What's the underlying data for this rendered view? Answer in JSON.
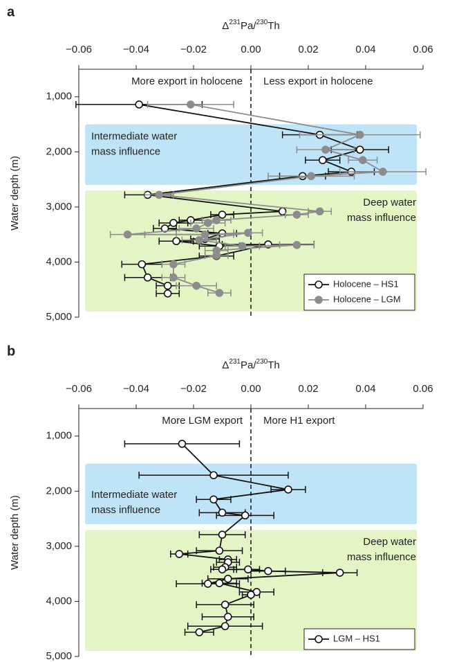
{
  "chart_data": [
    {
      "type": "scatter",
      "panel": "a",
      "xlabel": [
        {
          "text": "Δ"
        },
        {
          "text": "231",
          "sup": true
        },
        {
          "text": "Pa/"
        },
        {
          "text": "230",
          "sup": true
        },
        {
          "text": "Th"
        }
      ],
      "ylabel": "Water depth (m)",
      "xlim": [
        -0.06,
        0.06
      ],
      "ylim": [
        500,
        5000
      ],
      "xticks": [
        {
          "value": -0.06,
          "label": "−0.06"
        },
        {
          "value": -0.04,
          "label": "−0.04"
        },
        {
          "value": -0.02,
          "label": "−0.02"
        },
        {
          "value": 0,
          "label": "0.00"
        },
        0.02,
        0.04,
        0.06
      ],
      "yticks": [
        {
          "value": 1000,
          "label": "1,000"
        },
        {
          "value": 2000,
          "label": "2,000"
        },
        {
          "value": 3000,
          "label": "3,000"
        },
        {
          "value": 4000,
          "label": "4,000"
        },
        {
          "value": 5000,
          "label": "5,000"
        }
      ],
      "annotations": [
        "More export in holocene",
        "Less export in holocene"
      ],
      "regions": [
        {
          "label": [
            "Intermediate water",
            "mass influence"
          ],
          "ymin": 1500,
          "ymax": 2600,
          "color": "#bfe4f7",
          "label_position": "top-left"
        },
        {
          "label": [
            "Deep water",
            "mass influence"
          ],
          "ymin": 2700,
          "ymax": 4900,
          "color": "#e3f5c4",
          "label_position": "top-right"
        }
      ],
      "legend": "lower-right",
      "series": [
        {
          "name": "Holocene – HS1",
          "color": "#111111",
          "fill": "#ffffff",
          "x": [
            -0.039,
            0.024,
            0.038,
            0.025,
            0.035,
            0.018,
            -0.036,
            0.011,
            -0.01,
            -0.021,
            -0.027,
            -0.03,
            -0.01,
            -0.016,
            -0.026,
            -0.011,
            0.006,
            -0.012,
            -0.038,
            -0.036,
            -0.029,
            -0.029
          ],
          "values": [
            1140,
            1690,
            1960,
            2150,
            2360,
            2440,
            2780,
            3080,
            3140,
            3240,
            3290,
            3390,
            3480,
            3580,
            3620,
            3710,
            3680,
            3890,
            4040,
            4280,
            4430,
            4570
          ],
          "xerr": [
            0.022,
            0.013,
            0.01,
            0.006,
            0.008,
            0.008,
            0.008,
            0,
            0.004,
            0.004,
            0.005,
            0.004,
            0.005,
            0.005,
            0.006,
            0.007,
            0.016,
            0.006,
            0.007,
            0.008,
            0.004,
            0.004
          ]
        },
        {
          "name": "Holocene – LGM",
          "color": "#8c8c8c",
          "fill": "#8c8c8c",
          "x": [
            -0.021,
            0.038,
            0.026,
            0.039,
            0.046,
            0.021,
            -0.032,
            0.024,
            0.016,
            -0.012,
            -0.015,
            -0.019,
            -0.043,
            -0.016,
            -0.001,
            -0.018,
            -0.003,
            0.016,
            -0.012,
            -0.012,
            -0.027,
            -0.027,
            -0.019,
            -0.011
          ],
          "values": [
            1140,
            1690,
            1960,
            2150,
            2360,
            2440,
            2780,
            3080,
            3140,
            3240,
            3290,
            3390,
            3500,
            3500,
            3470,
            3600,
            3710,
            3690,
            3790,
            3880,
            4040,
            4280,
            4430,
            4560
          ],
          "xerr": [
            0.015,
            0.021,
            0.01,
            0.005,
            0.015,
            0.015,
            0.005,
            0.004,
            0.004,
            0.005,
            0.006,
            0.006,
            0.006,
            0.01,
            0.005,
            0.006,
            0.006,
            0.006,
            0.004,
            0.004,
            0.004,
            0.004,
            0.007,
            0.004
          ]
        }
      ]
    },
    {
      "type": "scatter",
      "panel": "b",
      "xlabel": [
        {
          "text": "Δ"
        },
        {
          "text": "231",
          "sup": true
        },
        {
          "text": "Pa/"
        },
        {
          "text": "230",
          "sup": true
        },
        {
          "text": "Th"
        }
      ],
      "ylabel": "Water depth (m)",
      "xlim": [
        -0.06,
        0.06
      ],
      "ylim": [
        500,
        5000
      ],
      "xticks": [
        {
          "value": -0.06,
          "label": "−0.06"
        },
        {
          "value": -0.04,
          "label": "−0.04"
        },
        {
          "value": -0.02,
          "label": "−0.02"
        },
        {
          "value": 0,
          "label": "0.00"
        },
        0.02,
        0.04,
        0.06
      ],
      "yticks": [
        {
          "value": 1000,
          "label": "1,000"
        },
        {
          "value": 2000,
          "label": "2,000"
        },
        {
          "value": 3000,
          "label": "3,000"
        },
        {
          "value": 4000,
          "label": "4,000"
        },
        {
          "value": 5000,
          "label": "5,000"
        }
      ],
      "annotations": [
        "More LGM export",
        "More H1 export"
      ],
      "regions": [
        {
          "label": [
            "Intermediate water",
            "mass influence"
          ],
          "ymin": 1500,
          "ymax": 2600,
          "color": "#bfe4f7",
          "label_position": "bottom-left"
        },
        {
          "label": [
            "Deep water",
            "mass influence"
          ],
          "ymin": 2700,
          "ymax": 4900,
          "color": "#e3f5c4",
          "label_position": "top-right"
        }
      ],
      "legend": "lower-right",
      "series": [
        {
          "name": "LGM – HS1",
          "color": "#111111",
          "fill": "#ffffff",
          "x": [
            -0.024,
            -0.013,
            0.013,
            -0.013,
            -0.01,
            -0.002,
            -0.01,
            -0.011,
            -0.025,
            -0.008,
            -0.008,
            -0.009,
            -0.01,
            -0.001,
            0.006,
            0.031,
            -0.008,
            -0.015,
            -0.011,
            0.002,
            0,
            -0.009,
            -0.008,
            -0.009,
            -0.018
          ],
          "values": [
            1140,
            1710,
            1970,
            2150,
            2390,
            2440,
            2790,
            3080,
            3140,
            3240,
            3290,
            3380,
            3420,
            3420,
            3450,
            3480,
            3590,
            3680,
            3670,
            3830,
            3880,
            4060,
            4280,
            4450,
            4560
          ],
          "xerr": [
            0.02,
            0.026,
            0.006,
            0.006,
            0.008,
            0.01,
            0.008,
            0.008,
            0.003,
            0.003,
            0.004,
            0.004,
            0.004,
            0.004,
            0.006,
            0.006,
            0.007,
            0.011,
            0.006,
            0.006,
            0.003,
            0.01,
            0.009,
            0.013,
            0.005
          ]
        }
      ]
    }
  ]
}
